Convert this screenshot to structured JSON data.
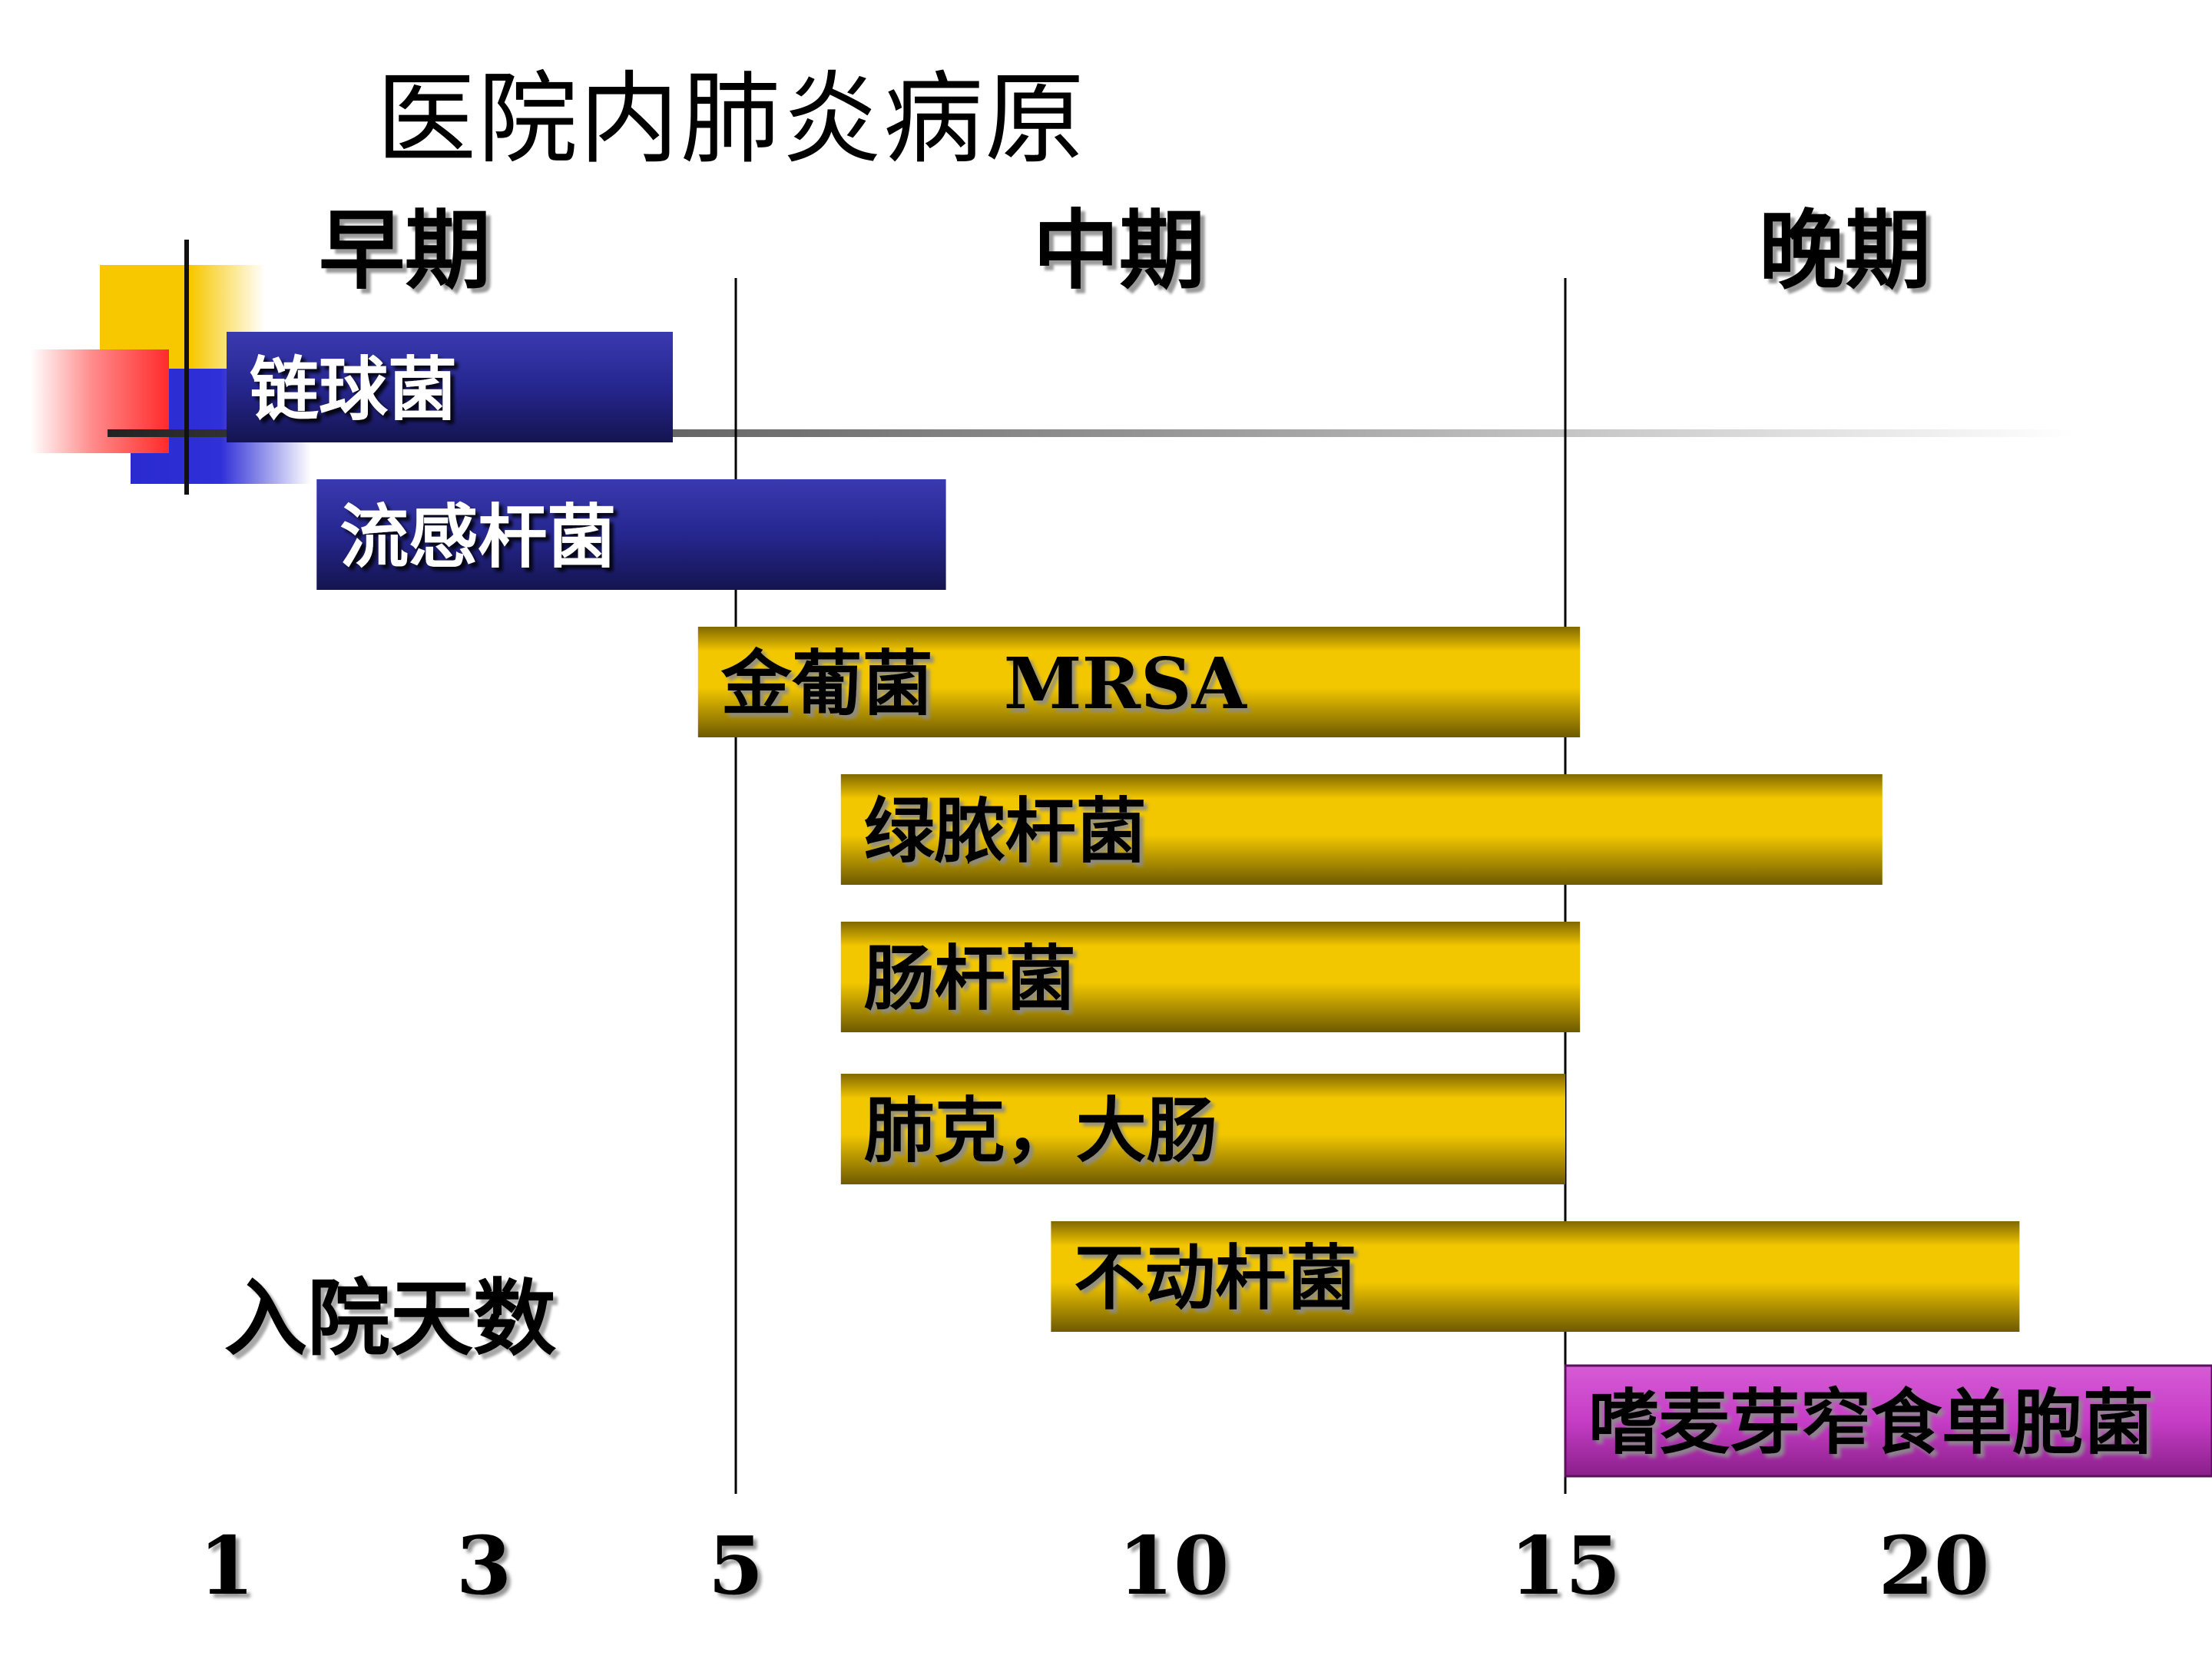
{
  "title": "医院内肺炎病原",
  "phases": [
    {
      "label": "早期"
    },
    {
      "label": "中期"
    },
    {
      "label": "晚期"
    }
  ],
  "days_label": "入院天数",
  "chart_data": {
    "type": "bar",
    "orientation": "horizontal",
    "title": "医院内肺炎病原",
    "xlabel": "入院天数",
    "x_ticks": [
      1,
      3,
      5,
      10,
      15,
      20
    ],
    "tick_labels": [
      "1",
      "3",
      "5",
      "10",
      "15",
      "20"
    ],
    "phase_dividers": [
      5,
      15
    ],
    "series": [
      {
        "name": "链球菌",
        "start": 1.0,
        "end": 4.5,
        "color": "#232478"
      },
      {
        "name": "流感杆菌",
        "start": 1.7,
        "end": 7.4,
        "color": "#232478"
      },
      {
        "name": "金葡菌　MRSA",
        "start": 4.7,
        "end": 15.2,
        "color": "#f2c700"
      },
      {
        "name": "绿脓杆菌",
        "start": 6.2,
        "end": 19.3,
        "color": "#f2c700"
      },
      {
        "name": "肠杆菌",
        "start": 6.2,
        "end": 15.2,
        "color": "#f2c700"
      },
      {
        "name": "肺克，大肠",
        "start": 6.2,
        "end": 15.0,
        "color": "#f2c700"
      },
      {
        "name": "不动杆菌",
        "start": 8.6,
        "end": 20.8,
        "color": "#f2c700"
      },
      {
        "name": "嗜麦芽窄食单胞菌",
        "start": 15.0,
        "end": 22.6,
        "color": "#cc44cc"
      }
    ]
  }
}
